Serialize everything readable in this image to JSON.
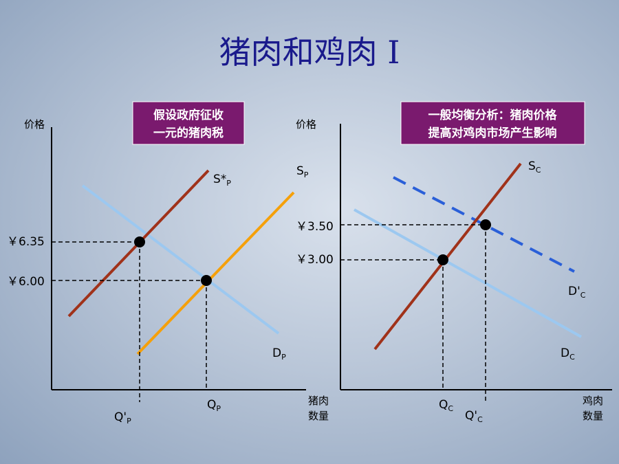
{
  "title": "猪肉和鸡肉 I",
  "panels": [
    {
      "y_axis_label": "价格",
      "x_axis_label": [
        "猪肉",
        "数量"
      ],
      "note": [
        "假设政府征收",
        "一元的猪肉税"
      ],
      "price_labels": [
        "￥6.35",
        "￥6.00"
      ],
      "quantity_labels": [
        {
          "main": "Q'",
          "sub": "P"
        },
        {
          "main": "Q",
          "sub": "P"
        }
      ],
      "curve_labels": [
        {
          "main": "S*",
          "sub": "P"
        },
        {
          "main": "S",
          "sub": "P"
        },
        {
          "main": "D",
          "sub": "P"
        }
      ]
    },
    {
      "y_axis_label": "价格",
      "x_axis_label": [
        "鸡肉",
        "数量"
      ],
      "note": [
        "一般均衡分析：猪肉价格",
        "提高对鸡肉市场产生影响"
      ],
      "price_labels": [
        "￥3.50",
        "￥3.00"
      ],
      "quantity_labels": [
        {
          "main": "Q",
          "sub": "C"
        },
        {
          "main": "Q'",
          "sub": "C"
        }
      ],
      "curve_labels": [
        {
          "main": "S",
          "sub": "C"
        },
        {
          "main": "D'",
          "sub": "C"
        },
        {
          "main": "D",
          "sub": "C"
        }
      ]
    }
  ]
}
